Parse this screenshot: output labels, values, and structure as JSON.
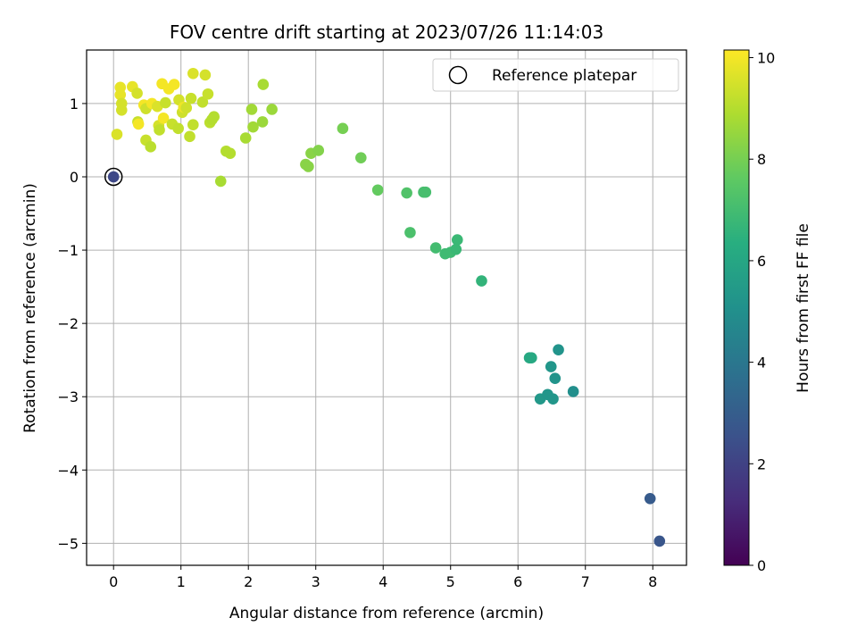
{
  "chart_data": {
    "type": "scatter",
    "title": "FOV centre drift starting at 2023/07/26 11:14:03",
    "xlabel": "Angular distance from reference (arcmin)",
    "ylabel": "Rotation from reference (arcmin)",
    "xlim": [
      -0.4,
      8.5
    ],
    "ylim": [
      -5.3,
      1.73
    ],
    "xticks": [
      0,
      1,
      2,
      3,
      4,
      5,
      6,
      7,
      8
    ],
    "yticks": [
      -5,
      -4,
      -3,
      -2,
      -1,
      0,
      1
    ],
    "grid": true,
    "legend": {
      "placement": "top-right",
      "entries": [
        "Reference platepar"
      ]
    },
    "reference_point": {
      "x": 0,
      "y": 0,
      "hours": 2.2
    },
    "colorbar": {
      "label": "Hours from first FF file",
      "range": [
        0,
        10.15
      ],
      "ticks": [
        0,
        2,
        4,
        6,
        8,
        10
      ],
      "colormap": "viridis"
    },
    "points": [
      {
        "x": 0.05,
        "y": 0.58,
        "c": 9.6
      },
      {
        "x": 0.1,
        "y": 1.22,
        "c": 9.8
      },
      {
        "x": 0.1,
        "y": 1.12,
        "c": 9.8
      },
      {
        "x": 0.12,
        "y": 0.91,
        "c": 9.5
      },
      {
        "x": 0.12,
        "y": 1.0,
        "c": 9.5
      },
      {
        "x": 0.28,
        "y": 1.23,
        "c": 9.8
      },
      {
        "x": 0.35,
        "y": 1.14,
        "c": 9.5
      },
      {
        "x": 0.36,
        "y": 0.75,
        "c": 9.3
      },
      {
        "x": 0.37,
        "y": 0.72,
        "c": 10.0
      },
      {
        "x": 0.45,
        "y": 0.98,
        "c": 10.0
      },
      {
        "x": 0.48,
        "y": 0.93,
        "c": 9.4
      },
      {
        "x": 0.48,
        "y": 0.5,
        "c": 9.3
      },
      {
        "x": 0.55,
        "y": 0.41,
        "c": 9.1
      },
      {
        "x": 0.57,
        "y": 1.0,
        "c": 10.0
      },
      {
        "x": 0.65,
        "y": 0.96,
        "c": 9.6
      },
      {
        "x": 0.67,
        "y": 0.7,
        "c": 9.5
      },
      {
        "x": 0.68,
        "y": 0.64,
        "c": 9.2
      },
      {
        "x": 0.72,
        "y": 1.27,
        "c": 10.0
      },
      {
        "x": 0.74,
        "y": 0.8,
        "c": 10.0
      },
      {
        "x": 0.77,
        "y": 1.01,
        "c": 9.3
      },
      {
        "x": 0.82,
        "y": 1.2,
        "c": 10.0
      },
      {
        "x": 0.87,
        "y": 0.72,
        "c": 9.3
      },
      {
        "x": 0.9,
        "y": 1.26,
        "c": 10.0
      },
      {
        "x": 0.96,
        "y": 0.66,
        "c": 9.2
      },
      {
        "x": 0.97,
        "y": 1.05,
        "c": 9.5
      },
      {
        "x": 1.02,
        "y": 0.88,
        "c": 9.4
      },
      {
        "x": 1.04,
        "y": 0.95,
        "c": 9.9
      },
      {
        "x": 1.08,
        "y": 0.94,
        "c": 9.4
      },
      {
        "x": 1.13,
        "y": 0.55,
        "c": 9.2
      },
      {
        "x": 1.15,
        "y": 1.07,
        "c": 9.3
      },
      {
        "x": 1.18,
        "y": 1.41,
        "c": 9.6
      },
      {
        "x": 1.18,
        "y": 0.71,
        "c": 9.2
      },
      {
        "x": 1.32,
        "y": 1.02,
        "c": 9.2
      },
      {
        "x": 1.36,
        "y": 1.39,
        "c": 9.5
      },
      {
        "x": 1.4,
        "y": 1.13,
        "c": 9.3
      },
      {
        "x": 1.43,
        "y": 0.74,
        "c": 9.1
      },
      {
        "x": 1.46,
        "y": 0.78,
        "c": 9.0
      },
      {
        "x": 1.49,
        "y": 0.82,
        "c": 9.0
      },
      {
        "x": 1.59,
        "y": -0.06,
        "c": 8.8
      },
      {
        "x": 1.67,
        "y": 0.35,
        "c": 9.0
      },
      {
        "x": 1.73,
        "y": 0.32,
        "c": 9.0
      },
      {
        "x": 1.96,
        "y": 0.53,
        "c": 8.8
      },
      {
        "x": 2.05,
        "y": 0.92,
        "c": 8.7
      },
      {
        "x": 2.07,
        "y": 0.68,
        "c": 8.7
      },
      {
        "x": 2.21,
        "y": 0.75,
        "c": 8.6
      },
      {
        "x": 2.22,
        "y": 1.26,
        "c": 8.8
      },
      {
        "x": 2.35,
        "y": 0.92,
        "c": 8.6
      },
      {
        "x": 2.85,
        "y": 0.17,
        "c": 8.3
      },
      {
        "x": 2.89,
        "y": 0.14,
        "c": 8.3
      },
      {
        "x": 2.93,
        "y": 0.32,
        "c": 8.3
      },
      {
        "x": 3.04,
        "y": 0.36,
        "c": 8.2
      },
      {
        "x": 3.4,
        "y": 0.66,
        "c": 8.0
      },
      {
        "x": 3.67,
        "y": 0.26,
        "c": 7.9
      },
      {
        "x": 3.92,
        "y": -0.18,
        "c": 7.7
      },
      {
        "x": 4.35,
        "y": -0.22,
        "c": 7.3
      },
      {
        "x": 4.4,
        "y": -0.76,
        "c": 7.2
      },
      {
        "x": 4.6,
        "y": -0.21,
        "c": 7.1
      },
      {
        "x": 4.63,
        "y": -0.21,
        "c": 7.1
      },
      {
        "x": 4.78,
        "y": -0.97,
        "c": 7.0
      },
      {
        "x": 4.92,
        "y": -1.05,
        "c": 6.9
      },
      {
        "x": 5.0,
        "y": -1.03,
        "c": 6.9
      },
      {
        "x": 5.08,
        "y": -0.99,
        "c": 6.8
      },
      {
        "x": 5.1,
        "y": -0.86,
        "c": 6.8
      },
      {
        "x": 5.46,
        "y": -1.42,
        "c": 6.6
      },
      {
        "x": 6.17,
        "y": -2.47,
        "c": 6.1
      },
      {
        "x": 6.2,
        "y": -2.47,
        "c": 6.1
      },
      {
        "x": 6.33,
        "y": -3.03,
        "c": 5.4
      },
      {
        "x": 6.44,
        "y": -2.97,
        "c": 5.3
      },
      {
        "x": 6.49,
        "y": -2.59,
        "c": 5.3
      },
      {
        "x": 6.52,
        "y": -3.03,
        "c": 5.3
      },
      {
        "x": 6.55,
        "y": -2.75,
        "c": 5.2
      },
      {
        "x": 6.6,
        "y": -2.36,
        "c": 5.2
      },
      {
        "x": 6.82,
        "y": -2.93,
        "c": 5.0
      },
      {
        "x": 7.96,
        "y": -4.39,
        "c": 2.9
      },
      {
        "x": 8.1,
        "y": -4.97,
        "c": 2.7
      }
    ]
  }
}
